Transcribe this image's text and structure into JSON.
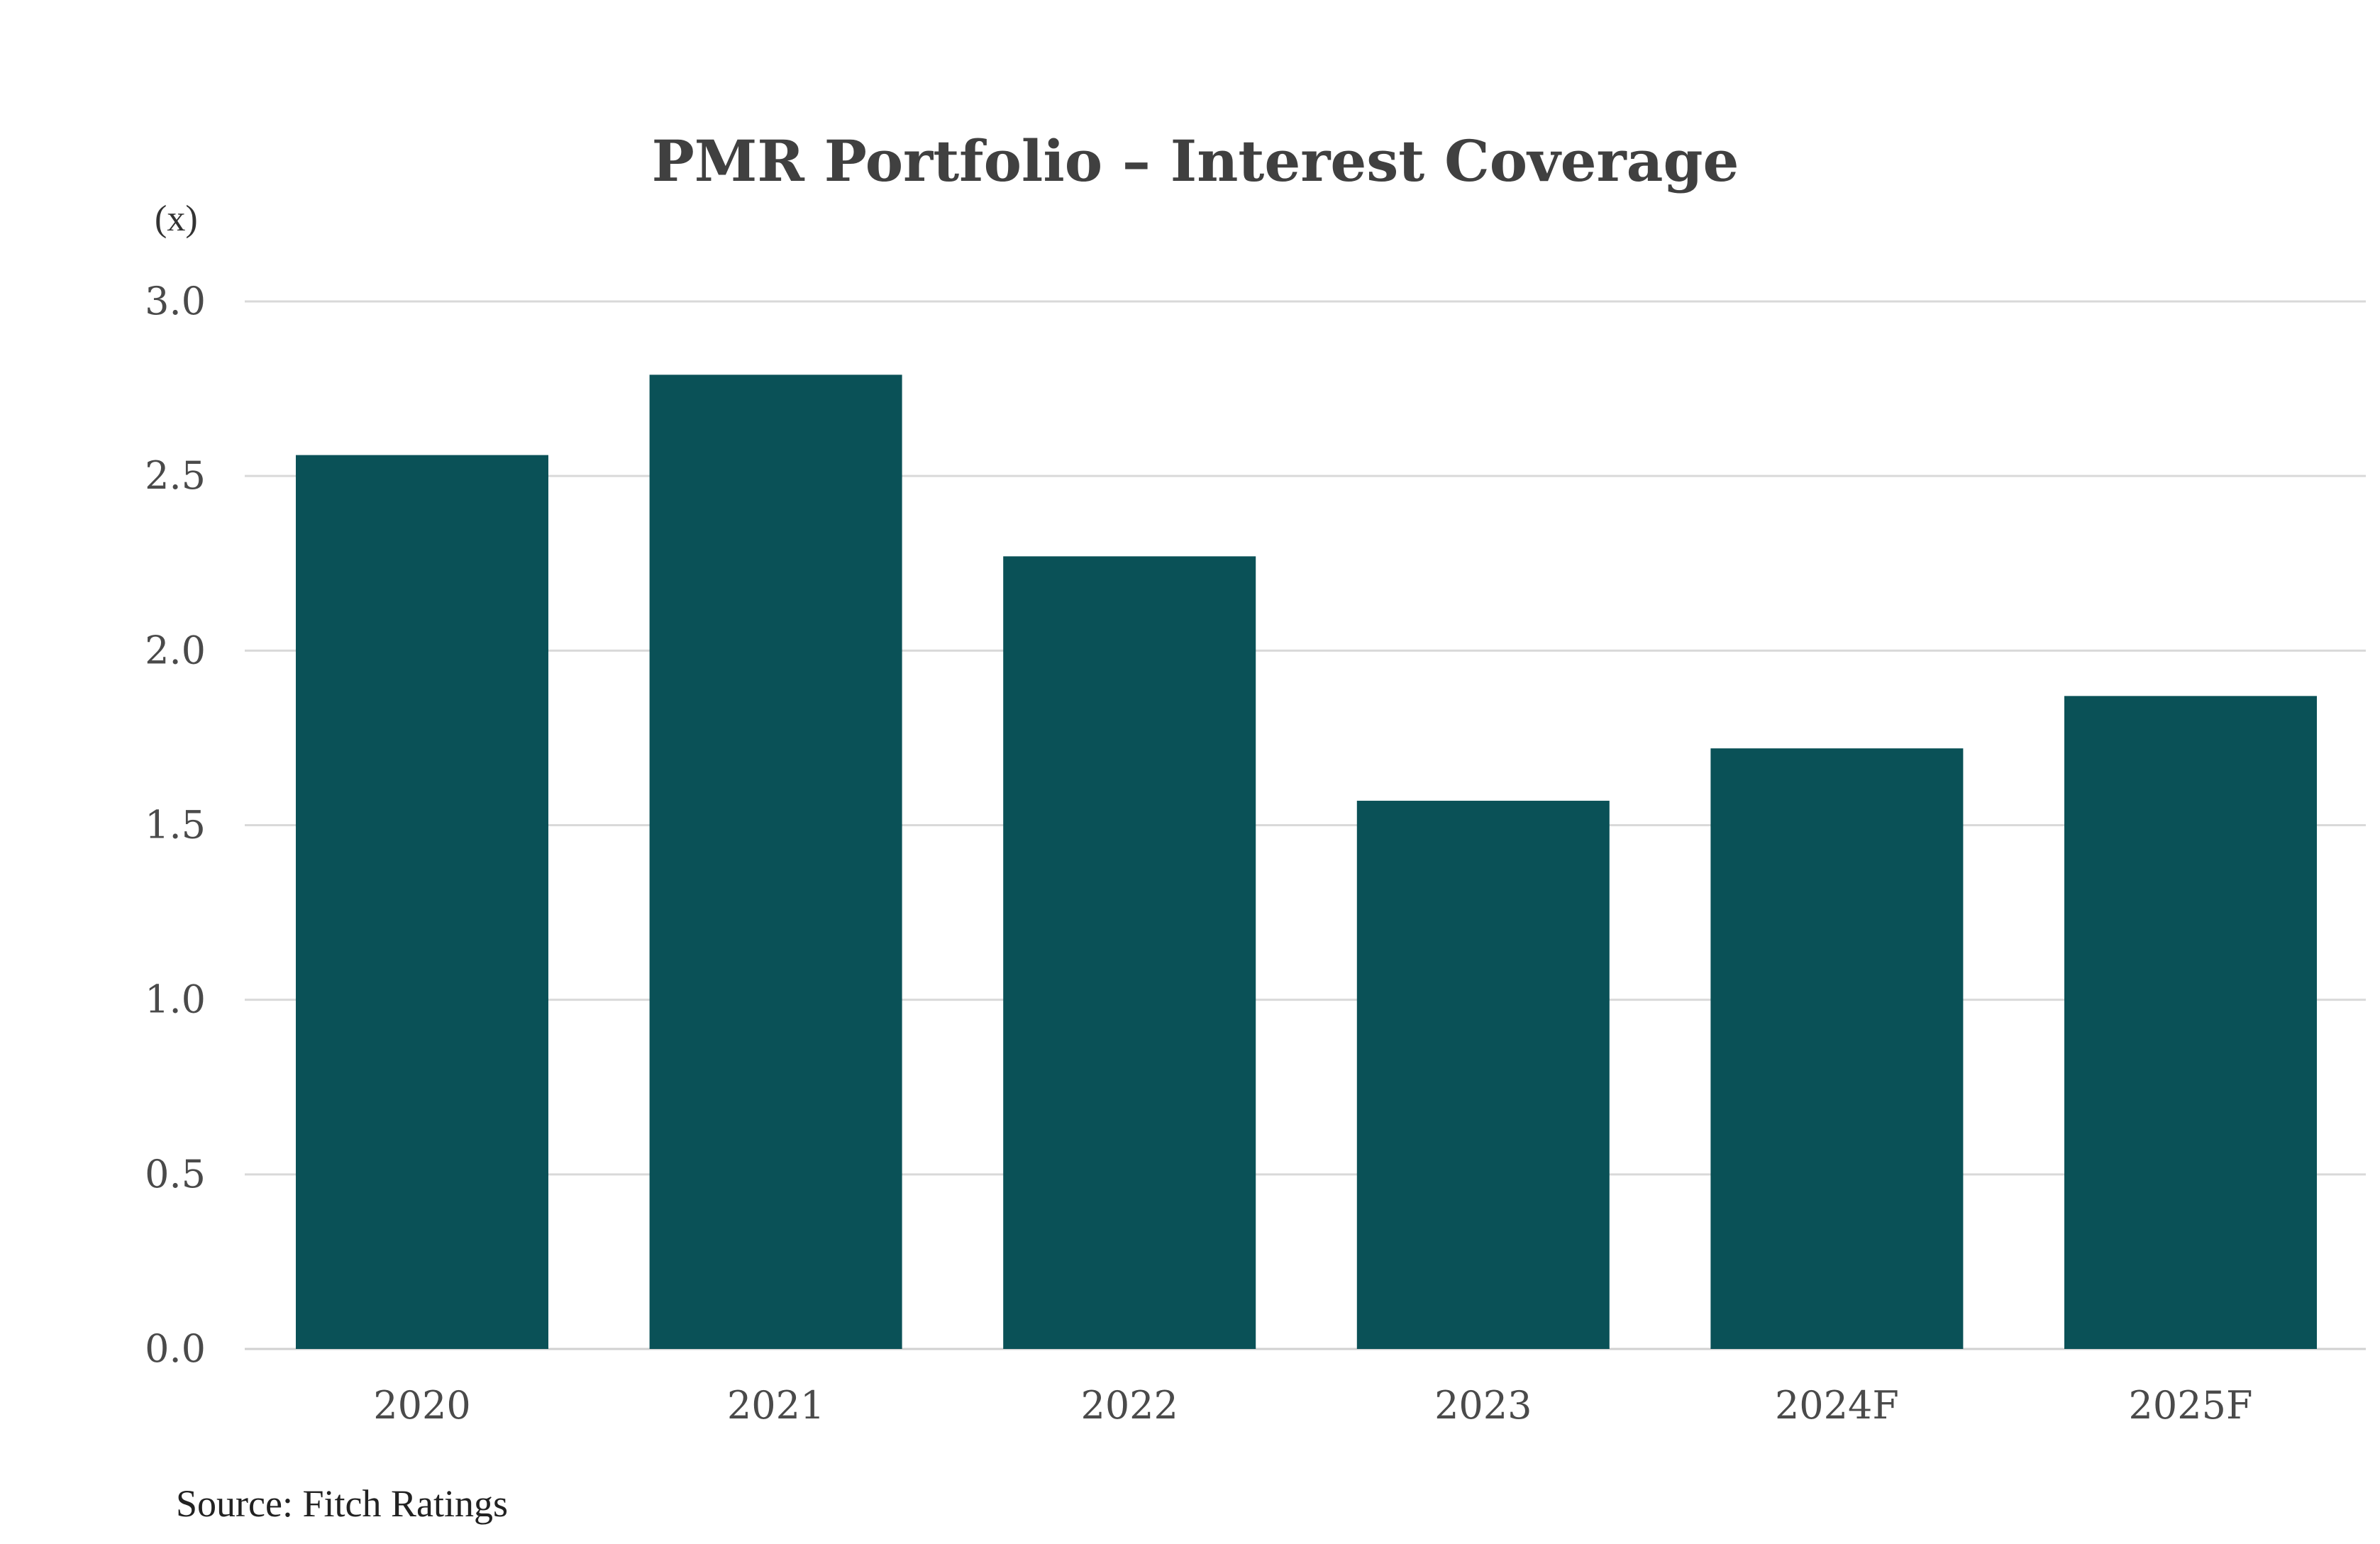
{
  "chart_data": {
    "type": "bar",
    "title": "PMR Portfolio – Interest Coverage",
    "ylabel": "(x)",
    "xlabel": "",
    "categories": [
      "2020",
      "2021",
      "2022",
      "2023",
      "2024F",
      "2025F"
    ],
    "values": [
      2.56,
      2.79,
      2.27,
      1.57,
      1.72,
      1.87
    ],
    "ylim": [
      0,
      3.0
    ],
    "yticks": [
      "0.0",
      "0.5",
      "1.0",
      "1.5",
      "2.0",
      "2.5",
      "3.0"
    ],
    "ytick_values": [
      0,
      0.5,
      1.0,
      1.5,
      2.0,
      2.5,
      3.0
    ],
    "grid": true,
    "legend": "none",
    "bar_color": "#0a5157"
  },
  "source": "Source: Fitch Ratings"
}
